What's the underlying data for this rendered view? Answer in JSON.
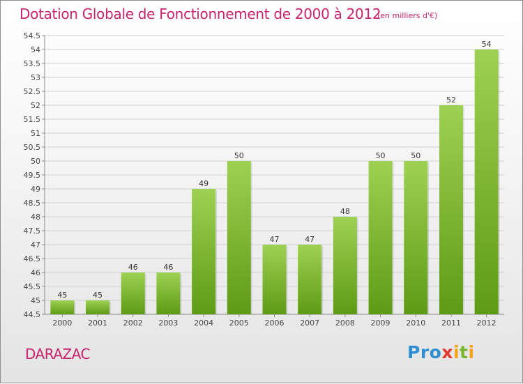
{
  "title": "Dotation Globale de Fonctionnement de 2000 à 2012",
  "subtitle": "(en milliers d'€)",
  "commune": "DARAZAC",
  "logo": {
    "p1": "Pro",
    "p2": "x",
    "p3": "i",
    "p4": "t",
    "p5": "i"
  },
  "colors": {
    "title": "#c8246e",
    "bar_top": "#9ed153",
    "bar_bottom": "#5e9b14",
    "grid": "#d0d0d0"
  },
  "chart_data": {
    "type": "bar",
    "categories": [
      "2000",
      "2001",
      "2002",
      "2003",
      "2004",
      "2005",
      "2006",
      "2007",
      "2008",
      "2009",
      "2010",
      "2011",
      "2012"
    ],
    "values": [
      45,
      45,
      46,
      46,
      49,
      50,
      47,
      47,
      48,
      50,
      50,
      52,
      54
    ],
    "ylim": [
      44.5,
      54.5
    ],
    "yticks": [
      "44.5",
      "45",
      "45.5",
      "46",
      "46.5",
      "47",
      "47.5",
      "48",
      "48.5",
      "49",
      "49.5",
      "50",
      "50.5",
      "51",
      "51.5",
      "52",
      "52.5",
      "53",
      "53.5",
      "54",
      "54.5"
    ],
    "grid": true,
    "data_labels": true
  }
}
